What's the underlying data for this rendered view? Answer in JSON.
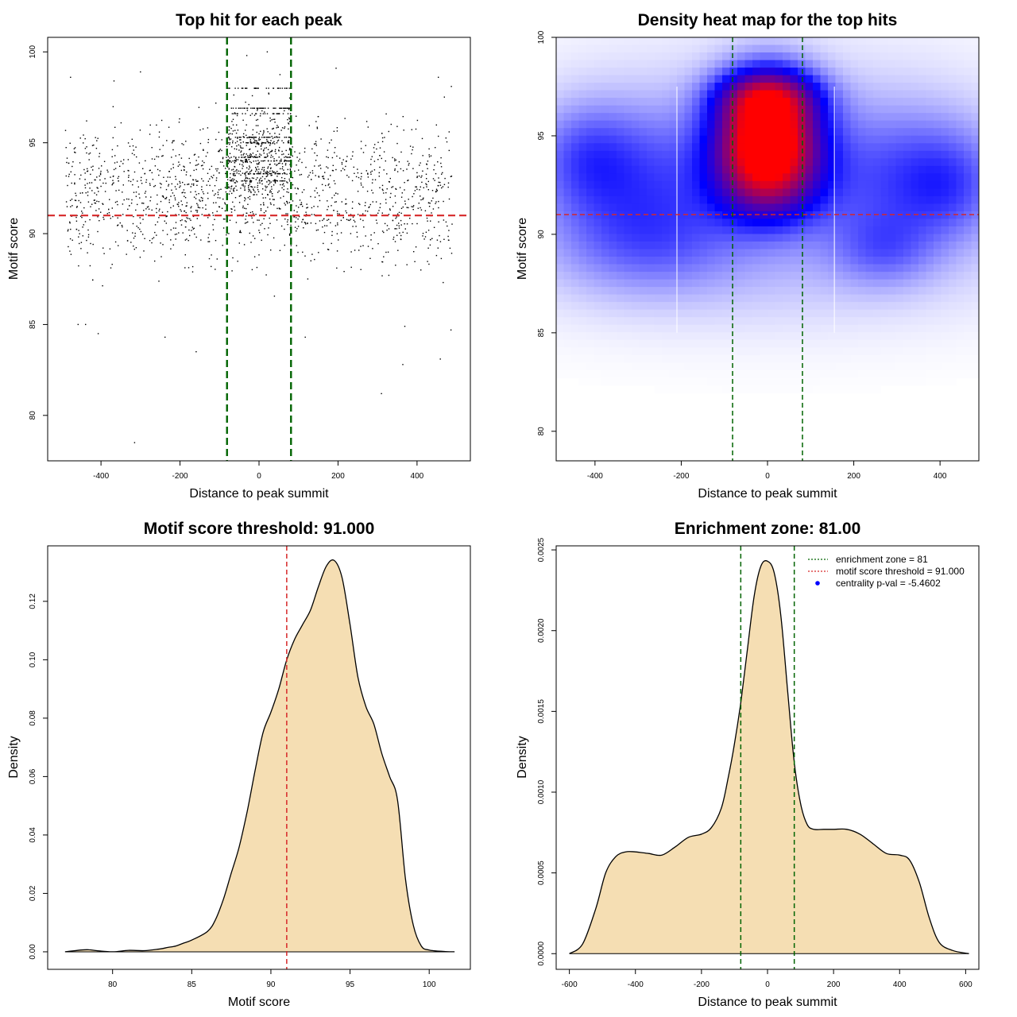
{
  "chart_data": [
    {
      "type": "scatter",
      "id": "scatter",
      "title": "Top hit for each peak",
      "xlabel": "Distance to peak summit",
      "ylabel": "Motif score",
      "xlim": [
        -535,
        535
      ],
      "ylim": [
        77.5,
        100.8
      ],
      "xticks": [
        -400,
        -200,
        0,
        200,
        400
      ],
      "yticks": [
        80,
        85,
        90,
        95,
        100
      ],
      "xtick_labels": [
        "-400",
        "-200",
        "0",
        "200",
        "400"
      ],
      "ytick_labels": [
        "80",
        "85",
        "90",
        "95",
        "100"
      ],
      "point_color": "#000000",
      "point_count": 2200,
      "x_range": [
        -490,
        490
      ],
      "points_sample": [
        [
          -315,
          78.5
        ],
        [
          310,
          81.2
        ],
        [
          364,
          82.8
        ],
        [
          459,
          83.1
        ],
        [
          -407,
          84.5
        ],
        [
          -159,
          83.5
        ],
        [
          -238,
          84.3
        ],
        [
          -458,
          85.0
        ],
        [
          -439,
          85.0
        ],
        [
          369,
          84.9
        ],
        [
          486,
          84.7
        ],
        [
          117,
          84.3
        ],
        [
          -300,
          98.9
        ],
        [
          -477,
          98.6
        ],
        [
          -367,
          98.4
        ],
        [
          21,
          100.0
        ],
        [
          -31,
          99.8
        ],
        [
          195,
          99.1
        ],
        [
          487,
          98.1
        ],
        [
          454,
          98.6
        ]
      ],
      "hlines": [
        {
          "y": 91.0,
          "color": "#d62728",
          "dash": "dashed",
          "label": "motif score threshold"
        }
      ],
      "vlines": [
        {
          "x": -81,
          "color": "#006400",
          "dash": "dashed"
        },
        {
          "x": 81,
          "color": "#006400",
          "dash": "dashed"
        }
      ]
    },
    {
      "type": "heatmap",
      "id": "heatmap",
      "title": "Density heat map for the top hits",
      "xlabel": "Distance to peak summit",
      "ylabel": "Motif score",
      "xlim": [
        -490,
        490
      ],
      "ylim": [
        78.5,
        100.0
      ],
      "xticks": [
        -400,
        -200,
        0,
        200,
        400
      ],
      "yticks": [
        80,
        85,
        90,
        95,
        100
      ],
      "xtick_labels": [
        "-400",
        "-200",
        "0",
        "200",
        "400"
      ],
      "ytick_labels": [
        "80",
        "85",
        "90",
        "95",
        "100"
      ],
      "colormap": [
        "#ffffff",
        "#0000ff",
        "#ff0000"
      ],
      "hot_spot": {
        "x": 5,
        "y": 94.6
      },
      "blobs": [
        {
          "x": 0,
          "y": 95,
          "sx": 80,
          "sy": 2.0,
          "w": 1.0
        },
        {
          "x": 0,
          "y": 97,
          "sx": 80,
          "sy": 0.9,
          "w": 0.35
        },
        {
          "x": 0,
          "y": 92.5,
          "sx": 85,
          "sy": 1.5,
          "w": 0.28
        },
        {
          "x": -300,
          "y": 93.0,
          "sx": 170,
          "sy": 2.6,
          "w": 0.2
        },
        {
          "x": 300,
          "y": 93.0,
          "sx": 170,
          "sy": 2.6,
          "w": 0.2
        },
        {
          "x": -420,
          "y": 94.0,
          "sx": 80,
          "sy": 1.8,
          "w": 0.12
        },
        {
          "x": 420,
          "y": 92.5,
          "sx": 80,
          "sy": 1.8,
          "w": 0.12
        },
        {
          "x": 270,
          "y": 89.2,
          "sx": 80,
          "sy": 1.3,
          "w": 0.12
        },
        {
          "x": -280,
          "y": 89.5,
          "sx": 150,
          "sy": 1.8,
          "w": 0.12
        },
        {
          "x": 0,
          "y": 88.5,
          "sx": 420,
          "sy": 2.5,
          "w": 0.07
        },
        {
          "x": 0,
          "y": 95.0,
          "sx": 420,
          "sy": 4.5,
          "w": 0.05
        }
      ],
      "white_lines_x": [
        -210,
        155
      ],
      "hlines": [
        {
          "y": 91.0,
          "color": "#d62728",
          "dash": "dashed"
        }
      ],
      "vlines": [
        {
          "x": -81,
          "color": "#006400",
          "dash": "dashed"
        },
        {
          "x": 81,
          "color": "#006400",
          "dash": "dashed"
        }
      ]
    },
    {
      "type": "area",
      "id": "score_density",
      "title": "Motif score threshold: 91.000",
      "xlabel": "Motif score",
      "ylabel": "Density",
      "xlim": [
        75.9,
        102.6
      ],
      "ylim": [
        -0.006,
        0.139
      ],
      "xticks": [
        80,
        85,
        90,
        95,
        100
      ],
      "yticks": [
        0.0,
        0.02,
        0.04,
        0.06,
        0.08,
        0.1,
        0.12
      ],
      "xtick_labels": [
        "80",
        "85",
        "90",
        "95",
        "100"
      ],
      "ytick_labels": [
        "0.00",
        "0.02",
        "0.04",
        "0.06",
        "0.08",
        "0.10",
        "0.12"
      ],
      "fill_color": "#f5deb3",
      "x": [
        77,
        78,
        78.5,
        79,
        80,
        81,
        82,
        83,
        83.5,
        84,
        84.5,
        85,
        86,
        86.5,
        87,
        87.5,
        88,
        88.5,
        89,
        89.5,
        90,
        90.5,
        91,
        91.5,
        92,
        92.5,
        93,
        93.5,
        94,
        94.5,
        95,
        95.5,
        96,
        96.5,
        97,
        97.5,
        98,
        98.5,
        99,
        99.5,
        100,
        101,
        101.6
      ],
      "y": [
        0.0,
        0.0006,
        0.0007,
        0.0004,
        0.0,
        0.0005,
        0.0004,
        0.001,
        0.0015,
        0.002,
        0.003,
        0.004,
        0.007,
        0.011,
        0.018,
        0.027,
        0.036,
        0.048,
        0.062,
        0.075,
        0.082,
        0.09,
        0.1,
        0.107,
        0.112,
        0.117,
        0.125,
        0.132,
        0.134,
        0.128,
        0.112,
        0.094,
        0.084,
        0.078,
        0.068,
        0.06,
        0.052,
        0.025,
        0.009,
        0.002,
        0.0006,
        0.0001,
        0.0
      ],
      "vlines": [
        {
          "x": 91.0,
          "color": "#d62728",
          "dash": "dashed"
        }
      ]
    },
    {
      "type": "area",
      "id": "distance_density",
      "title": "Enrichment zone: 81.00",
      "xlabel": "Distance to peak summit",
      "ylabel": "Density",
      "xlim": [
        -640,
        640
      ],
      "ylim": [
        -9.7e-05,
        0.002525
      ],
      "xticks": [
        -600,
        -400,
        -200,
        0,
        200,
        400,
        600
      ],
      "yticks": [
        0.0,
        0.0005,
        0.001,
        0.0015,
        0.002,
        0.0025
      ],
      "xtick_labels": [
        "-600",
        "-400",
        "-200",
        "0",
        "200",
        "400",
        "600"
      ],
      "ytick_labels": [
        "0.0000",
        "0.0005",
        "0.0010",
        "0.0015",
        "0.0020",
        "0.0025"
      ],
      "fill_color": "#f5deb3",
      "x": [
        -600,
        -560,
        -520,
        -490,
        -460,
        -430,
        -400,
        -360,
        -320,
        -280,
        -240,
        -200,
        -170,
        -140,
        -120,
        -100,
        -80,
        -60,
        -40,
        -20,
        0,
        20,
        40,
        60,
        80,
        100,
        120,
        140,
        170,
        200,
        240,
        280,
        320,
        360,
        400,
        430,
        460,
        490,
        520,
        560,
        610
      ],
      "y": [
        0.0,
        6e-05,
        0.00028,
        0.0005,
        0.0006,
        0.00063,
        0.00063,
        0.00062,
        0.00061,
        0.00066,
        0.00072,
        0.00074,
        0.00078,
        0.0009,
        0.00108,
        0.0013,
        0.00157,
        0.0019,
        0.00222,
        0.0024,
        0.00243,
        0.00236,
        0.0021,
        0.00165,
        0.0012,
        0.00093,
        0.0008,
        0.00077,
        0.00077,
        0.00077,
        0.00077,
        0.00074,
        0.00068,
        0.00062,
        0.00061,
        0.00058,
        0.00044,
        0.00022,
        7e-05,
        2e-05,
        0.0
      ],
      "vlines": [
        {
          "x": -81,
          "color": "#006400",
          "dash": "dashed"
        },
        {
          "x": 81,
          "color": "#006400",
          "dash": "dashed"
        }
      ],
      "legend": {
        "position": "top-right",
        "entries": [
          {
            "label": "enrichment zone = 81",
            "color": "#006400",
            "style": "dotted-line"
          },
          {
            "label": "motif score threshold = 91.000",
            "color": "#d62728",
            "style": "dotted-line"
          },
          {
            "label": "centrality p-val = -5.4602",
            "color": "#0000ff",
            "style": "point"
          }
        ]
      }
    }
  ]
}
